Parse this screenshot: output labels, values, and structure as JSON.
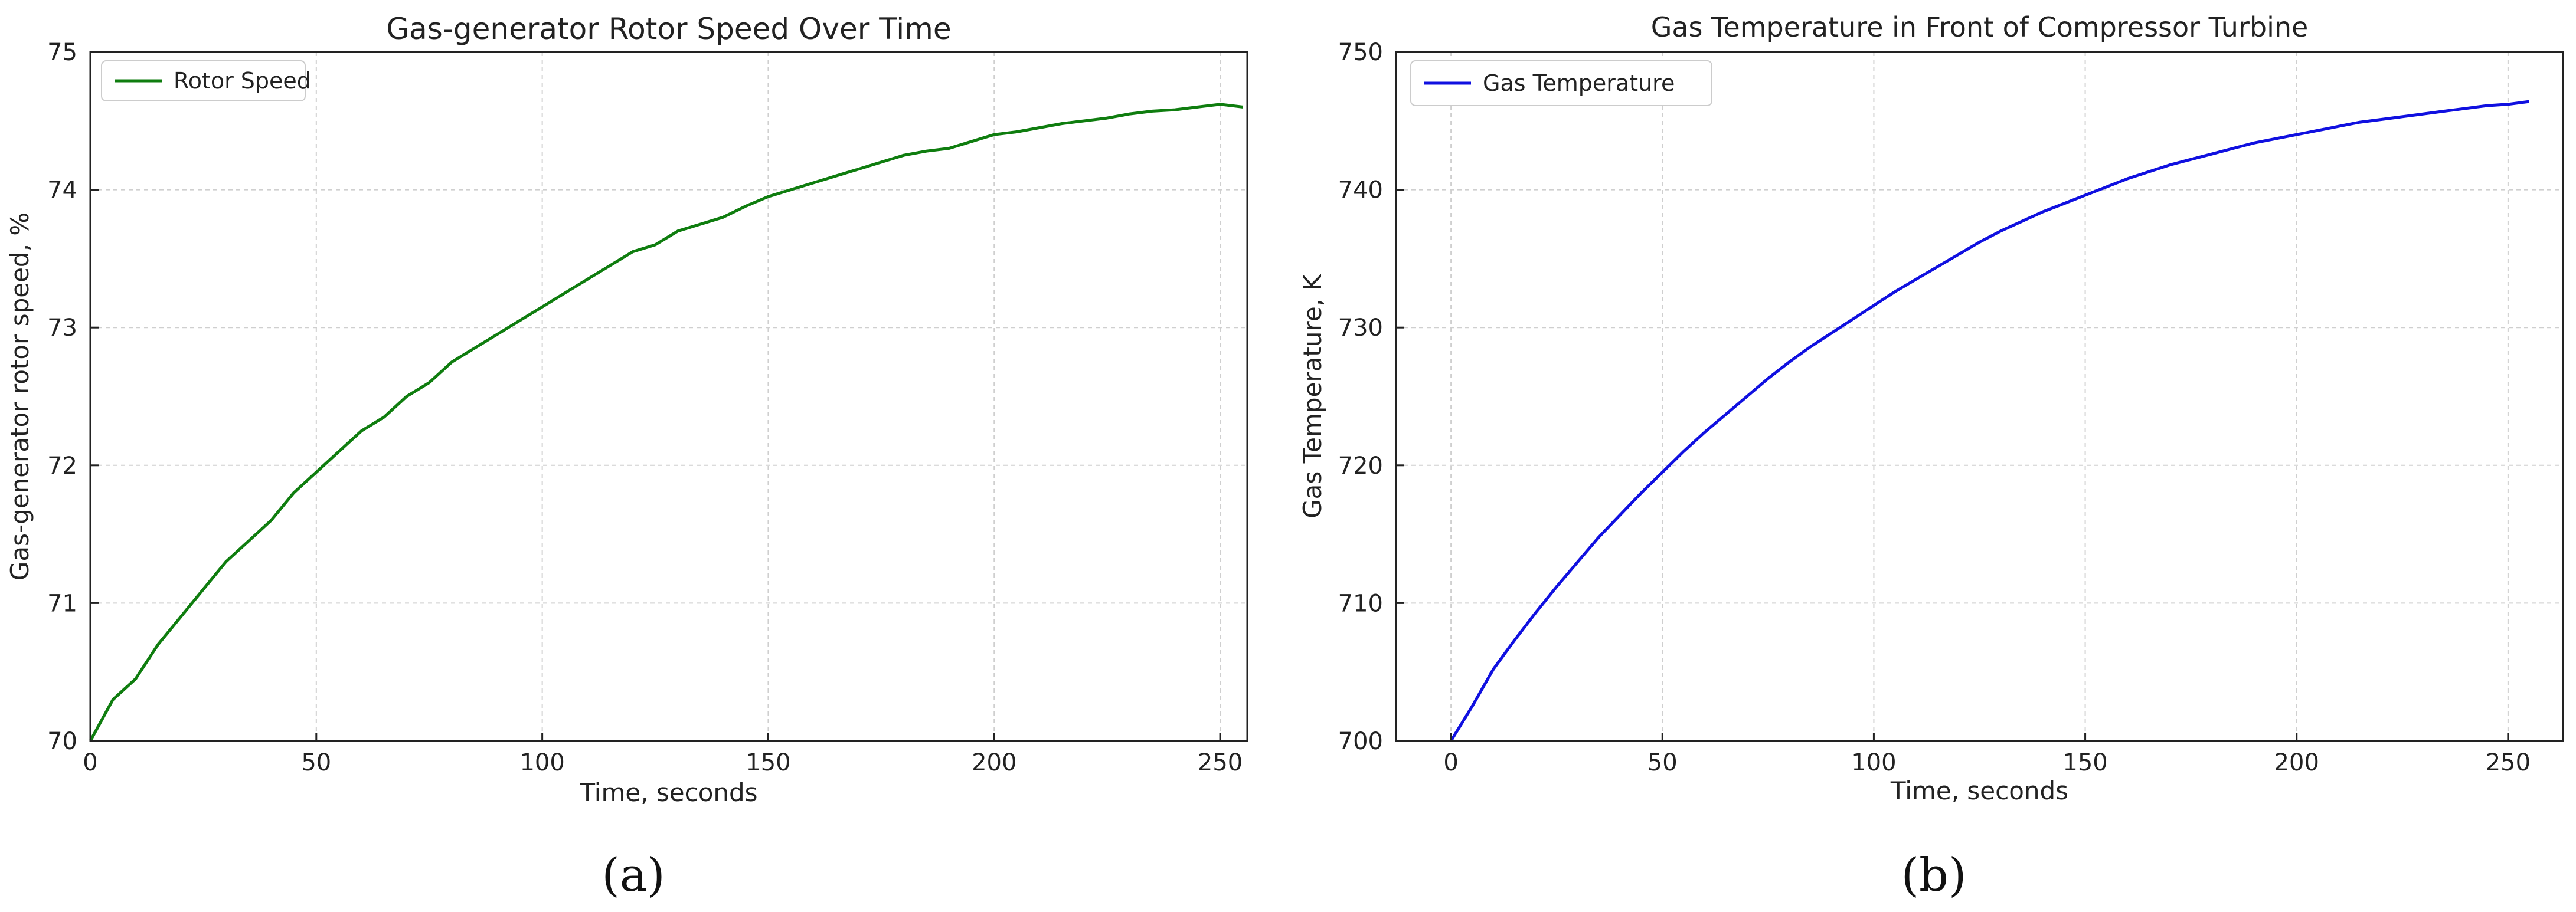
{
  "chart_data": [
    {
      "type": "line",
      "title": "Gas-generator Rotor Speed Over Time",
      "xlabel": "Time, seconds",
      "ylabel": "Gas-generator rotor speed, %",
      "xlim": [
        0,
        256
      ],
      "ylim": [
        70,
        75
      ],
      "xticks": [
        "0",
        "50",
        "100",
        "150",
        "200",
        "250"
      ],
      "yticks": [
        "70",
        "71",
        "72",
        "73",
        "74",
        "75"
      ],
      "grid": true,
      "legend_position": "top-left",
      "colors": {
        "series": "#0f7d0f"
      },
      "series": [
        {
          "name": "Rotor Speed",
          "x": [
            0,
            5,
            10,
            15,
            20,
            25,
            30,
            35,
            40,
            45,
            50,
            55,
            60,
            65,
            70,
            75,
            80,
            85,
            90,
            95,
            100,
            105,
            110,
            115,
            120,
            125,
            130,
            135,
            140,
            145,
            150,
            155,
            160,
            165,
            170,
            175,
            180,
            185,
            190,
            195,
            200,
            205,
            210,
            215,
            220,
            225,
            230,
            235,
            240,
            245,
            250,
            255
          ],
          "values": [
            70.0,
            70.3,
            70.45,
            70.7,
            70.9,
            71.1,
            71.3,
            71.45,
            71.6,
            71.8,
            71.95,
            72.1,
            72.25,
            72.35,
            72.5,
            72.6,
            72.75,
            72.85,
            72.95,
            73.05,
            73.15,
            73.25,
            73.35,
            73.45,
            73.55,
            73.6,
            73.7,
            73.75,
            73.8,
            73.88,
            73.95,
            74.0,
            74.05,
            74.1,
            74.15,
            74.2,
            74.25,
            74.28,
            74.3,
            74.35,
            74.4,
            74.42,
            74.45,
            74.48,
            74.5,
            74.52,
            74.55,
            74.57,
            74.58,
            74.6,
            74.62,
            74.6
          ]
        }
      ],
      "panel_label": "(a)"
    },
    {
      "type": "line",
      "title": "Gas Temperature in Front of Compressor Turbine",
      "xlabel": "Time, seconds",
      "ylabel": "Gas Temperature, K",
      "xlim": [
        -13,
        263
      ],
      "ylim": [
        700,
        750
      ],
      "xticks": [
        "0",
        "50",
        "100",
        "150",
        "200",
        "250"
      ],
      "yticks": [
        "700",
        "710",
        "720",
        "730",
        "740",
        "750"
      ],
      "grid": true,
      "legend_position": "top-left",
      "colors": {
        "series": "#1010e0"
      },
      "series": [
        {
          "name": "Gas Temperature",
          "x": [
            0,
            5,
            10,
            15,
            20,
            25,
            30,
            35,
            40,
            45,
            50,
            55,
            60,
            65,
            70,
            75,
            80,
            85,
            90,
            95,
            100,
            105,
            110,
            115,
            120,
            125,
            130,
            135,
            140,
            145,
            150,
            155,
            160,
            165,
            170,
            175,
            180,
            185,
            190,
            195,
            200,
            205,
            210,
            215,
            220,
            225,
            230,
            235,
            240,
            245,
            250,
            255
          ],
          "values": [
            700.0,
            702.5,
            705.2,
            707.3,
            709.3,
            711.2,
            713.0,
            714.8,
            716.4,
            718.0,
            719.5,
            721.0,
            722.4,
            723.7,
            725.0,
            726.3,
            727.5,
            728.6,
            729.6,
            730.6,
            731.6,
            732.6,
            733.5,
            734.4,
            735.3,
            736.2,
            737.0,
            737.7,
            738.4,
            739.0,
            739.6,
            740.2,
            740.8,
            741.3,
            741.8,
            742.2,
            742.6,
            743.0,
            743.4,
            743.7,
            744.0,
            744.3,
            744.6,
            744.9,
            745.1,
            745.3,
            745.5,
            745.7,
            745.9,
            746.1,
            746.2,
            746.4
          ]
        }
      ],
      "panel_label": "(b)"
    }
  ]
}
